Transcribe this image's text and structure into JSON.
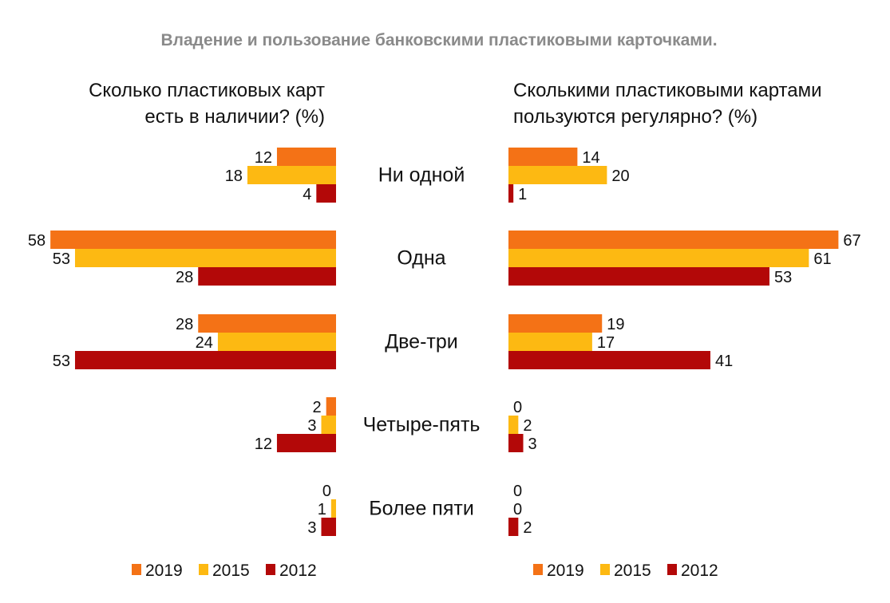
{
  "chart_data": {
    "type": "bar",
    "title": "Владение и пользование банковскими пластиковыми карточками.",
    "categories": [
      "Ни одной",
      "Одна",
      "Две-три",
      "Четыре-пять",
      "Более пяти"
    ],
    "legend": {
      "placement": "bottom",
      "items": [
        "2019",
        "2015",
        "2012"
      ]
    },
    "panels": [
      {
        "title_lines": [
          "Сколько пластиковых карт",
          "есть в наличии? (%)"
        ],
        "direction": "left",
        "series": [
          {
            "name": "2019",
            "values": [
              12,
              58,
              28,
              2,
              0
            ]
          },
          {
            "name": "2015",
            "values": [
              18,
              53,
              24,
              3,
              1
            ]
          },
          {
            "name": "2012",
            "values": [
              4,
              28,
              53,
              12,
              3
            ]
          }
        ]
      },
      {
        "title_lines": [
          "Сколькими пластиковыми картами",
          "пользуются регулярно? (%)"
        ],
        "direction": "right",
        "series": [
          {
            "name": "2019",
            "values": [
              14,
              67,
              19,
              0,
              0
            ]
          },
          {
            "name": "2015",
            "values": [
              20,
              61,
              17,
              2,
              0
            ]
          },
          {
            "name": "2012",
            "values": [
              1,
              53,
              41,
              3,
              2
            ]
          }
        ]
      }
    ],
    "colors": {
      "2019": "#F47216",
      "2015": "#FDB912",
      "2012": "#B30808"
    }
  }
}
